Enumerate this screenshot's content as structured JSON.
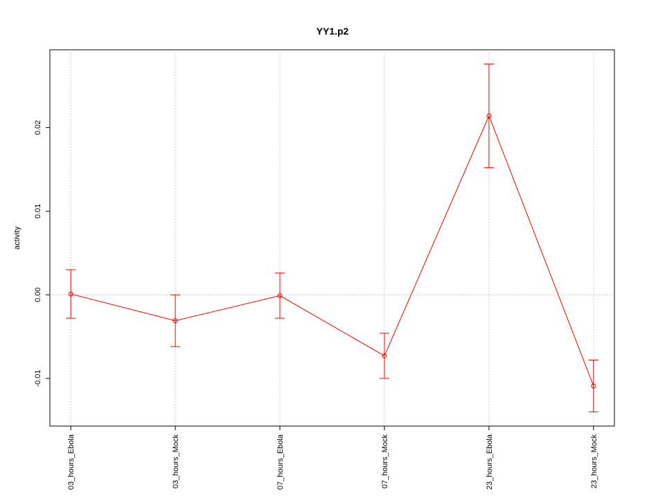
{
  "chart_data": {
    "type": "line",
    "title": "YY1.p2",
    "y_label": "activity",
    "categories": [
      "03_hours_Ebola",
      "03_hours_Mock",
      "07_hours_Ebola",
      "07_hours_Mock",
      "23_hours_Ebola",
      "23_hours_Mock"
    ],
    "values": [
      0.0001,
      -0.0031,
      -0.0001,
      -0.0073,
      0.0214,
      -0.0109
    ],
    "errors": [
      0.0029,
      0.0031,
      0.0027,
      0.0027,
      0.0062,
      0.0031
    ],
    "color": "#ff0000",
    "ylim": [
      -0.0157,
      0.0293
    ],
    "yticks": [
      -0.01,
      {
        "value": 0,
        "label": "0.00"
      },
      0.01,
      0.02
    ],
    "grid": true,
    "zero_line": true
  }
}
